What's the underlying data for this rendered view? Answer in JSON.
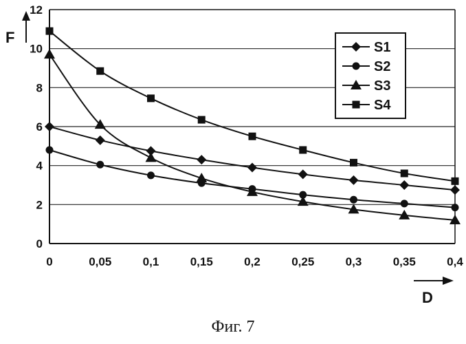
{
  "chart_data": {
    "type": "line",
    "ylabel": "F",
    "xlabel": "D",
    "x": [
      0,
      0.05,
      0.1,
      0.15,
      0.2,
      0.25,
      0.3,
      0.35,
      0.4
    ],
    "x_tick_labels": [
      "0",
      "0,05",
      "0,1",
      "0,15",
      "0,2",
      "0,25",
      "0,3",
      "0,35",
      "0,4"
    ],
    "y_ticks": [
      0,
      2,
      4,
      6,
      8,
      10,
      12
    ],
    "y_tick_labels": [
      "0",
      "2",
      "4",
      "6",
      "8",
      "10",
      "12"
    ],
    "xlim": [
      0,
      0.4
    ],
    "ylim": [
      0,
      12
    ],
    "grid": "horizontal",
    "legend_position": "top-right",
    "series": [
      {
        "name": "S1",
        "marker": "diamond",
        "values": [
          6.0,
          5.3,
          4.75,
          4.3,
          3.9,
          3.55,
          3.25,
          3.0,
          2.75
        ]
      },
      {
        "name": "S2",
        "marker": "circle",
        "values": [
          4.8,
          4.05,
          3.5,
          3.1,
          2.8,
          2.5,
          2.25,
          2.05,
          1.85
        ]
      },
      {
        "name": "S3",
        "marker": "triangle",
        "values": [
          9.7,
          6.1,
          4.4,
          3.35,
          2.65,
          2.15,
          1.75,
          1.45,
          1.2
        ]
      },
      {
        "name": "S4",
        "marker": "square",
        "values": [
          10.9,
          8.85,
          7.45,
          6.35,
          5.5,
          4.8,
          4.15,
          3.6,
          3.2
        ]
      }
    ]
  },
  "caption": "Фиг. 7"
}
